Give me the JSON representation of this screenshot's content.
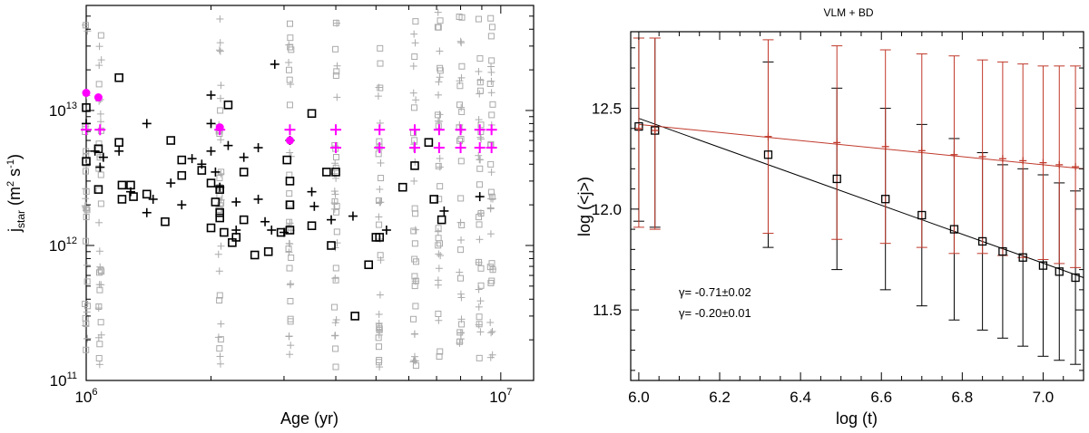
{
  "chart_data": [
    {
      "type": "scatter",
      "xscale": "log",
      "yscale": "log",
      "title": "",
      "xlabel": "Age (yr)",
      "ylabel_main": "j",
      "ylabel_sub": "star",
      "ylabel_units": "(m",
      "ylabel_units_rest": " s",
      "ylabel_units_end": ")",
      "ylabel_sup1": "2",
      "ylabel_sup2": "-1",
      "xlim": [
        1000000.0,
        12000000.0
      ],
      "ylim": [
        100000000000.0,
        60000000000000.0
      ],
      "x_ticks": [
        {
          "value": 1000000.0,
          "base": "10",
          "exp": "6"
        },
        {
          "value": 10000000.0,
          "base": "10",
          "exp": "7"
        }
      ],
      "y_ticks": [
        {
          "value": 100000000000.0,
          "base": "10",
          "exp": "11"
        },
        {
          "value": 1000000000000.0,
          "base": "10",
          "exp": "12"
        },
        {
          "value": 10000000000000.0,
          "base": "10",
          "exp": "13"
        }
      ],
      "grey_columns_age": [
        1000000.0,
        1080000.0,
        2100000.0,
        3100000.0,
        4000000.0,
        5100000.0,
        6200000.0,
        7100000.0,
        8000000.0,
        8900000.0,
        9500000.0
      ],
      "black_squares": [
        [
          1000000.0,
          10500000000000.0
        ],
        [
          1000000.0,
          4200000000000.0
        ],
        [
          1070000.0,
          5200000000000.0
        ],
        [
          1070000.0,
          2600000000000.0
        ],
        [
          1200000.0,
          17500000000000.0
        ],
        [
          1200000.0,
          5800000000000.0
        ],
        [
          1220000.0,
          2800000000000.0
        ],
        [
          1280000.0,
          2800000000000.0
        ],
        [
          1220000.0,
          2200000000000.0
        ],
        [
          1300000.0,
          2300000000000.0
        ],
        [
          1400000.0,
          2400000000000.0
        ],
        [
          1600000.0,
          6000000000000.0
        ],
        [
          1550000.0,
          1500000000000.0
        ],
        [
          1700000.0,
          4300000000000.0
        ],
        [
          1700000.0,
          3300000000000.0
        ],
        [
          1900000.0,
          3600000000000.0
        ],
        [
          2000000.0,
          1350000000000.0
        ],
        [
          2000000.0,
          2900000000000.0
        ],
        [
          2050000.0,
          2100000000000.0
        ],
        [
          2100000.0,
          1600000000000.0
        ],
        [
          2100000.0,
          1750000000000.0
        ],
        [
          2100000.0,
          2600000000000.0
        ],
        [
          2150000.0,
          1250000000000.0
        ],
        [
          2200000.0,
          11000000000000.0
        ],
        [
          2250000.0,
          1050000000000.0
        ],
        [
          2300000.0,
          1150000000000.0
        ],
        [
          2400000.0,
          3500000000000.0
        ],
        [
          2400000.0,
          1550000000000.0
        ],
        [
          2550000.0,
          850000000000.0
        ],
        [
          2750000.0,
          900000000000.0
        ],
        [
          2950000.0,
          1250000000000.0
        ],
        [
          3050000.0,
          4300000000000.0
        ],
        [
          3100000.0,
          3000000000000.0
        ],
        [
          3100000.0,
          2000000000000.0
        ],
        [
          3100000.0,
          1300000000000.0
        ],
        [
          3500000.0,
          9500000000000.0
        ],
        [
          3500000.0,
          1400000000000.0
        ],
        [
          3800000.0,
          3500000000000.0
        ],
        [
          3900000.0,
          1000000000000.0
        ],
        [
          4000000.0,
          3500000000000.0
        ],
        [
          4450000.0,
          300000000000.0
        ],
        [
          4800000.0,
          720000000000.0
        ],
        [
          5000000.0,
          1150000000000.0
        ],
        [
          5100000.0,
          1150000000000.0
        ],
        [
          5800000.0,
          2700000000000.0
        ],
        [
          6200000.0,
          3900000000000.0
        ],
        [
          6700000.0,
          5800000000000.0
        ],
        [
          6900000.0,
          2200000000000.0
        ],
        [
          7200000.0,
          1550000000000.0
        ]
      ],
      "black_crosses": [
        [
          1000000.0,
          8000000000000.0
        ],
        [
          1050000.0,
          5000000000000.0
        ],
        [
          1080000.0,
          3800000000000.0
        ],
        [
          1100000.0,
          4500000000000.0
        ],
        [
          1200000.0,
          5000000000000.0
        ],
        [
          1280000.0,
          2500000000000.0
        ],
        [
          1400000.0,
          8000000000000.0
        ],
        [
          1400000.0,
          1750000000000.0
        ],
        [
          1450000.0,
          2200000000000.0
        ],
        [
          1600000.0,
          2900000000000.0
        ],
        [
          1700000.0,
          2000000000000.0
        ],
        [
          1800000.0,
          4400000000000.0
        ],
        [
          1900000.0,
          4000000000000.0
        ],
        [
          2000000.0,
          13000000000000.0
        ],
        [
          2000000.0,
          8000000000000.0
        ],
        [
          2000000.0,
          5000000000000.0
        ],
        [
          2050000.0,
          3500000000000.0
        ],
        [
          2100000.0,
          2700000000000.0
        ],
        [
          2200000.0,
          5500000000000.0
        ],
        [
          2300000.0,
          2100000000000.0
        ],
        [
          2300000.0,
          1300000000000.0
        ],
        [
          2400000.0,
          4500000000000.0
        ],
        [
          2600000.0,
          5300000000000.0
        ],
        [
          2600000.0,
          2200000000000.0
        ],
        [
          2700000.0,
          1500000000000.0
        ],
        [
          2800000.0,
          1300000000000.0
        ],
        [
          2850000.0,
          22000000000000.0
        ],
        [
          3000000.0,
          1250000000000.0
        ],
        [
          3100000.0,
          6000000000000.0
        ],
        [
          3500000.0,
          2500000000000.0
        ],
        [
          3550000.0,
          1950000000000.0
        ],
        [
          3900000.0,
          1550000000000.0
        ],
        [
          4400000.0,
          1650000000000.0
        ],
        [
          5300000.0,
          1300000000000.0
        ],
        [
          7300000.0,
          1800000000000.0
        ],
        [
          8900000.0,
          2300000000000.0
        ]
      ],
      "magenta_circles": [
        [
          1000000.0,
          13500000000000.0
        ],
        [
          1070000.0,
          12500000000000.0
        ],
        [
          2100000.0,
          7500000000000.0
        ],
        [
          3100000.0,
          6000000000000.0
        ]
      ],
      "magenta_crosses": [
        [
          1000000.0,
          7200000000000.0
        ],
        [
          1080000.0,
          7200000000000.0
        ],
        [
          2100000.0,
          7200000000000.0
        ],
        [
          3100000.0,
          7200000000000.0
        ],
        [
          4000000.0,
          7200000000000.0
        ],
        [
          5100000.0,
          7200000000000.0
        ],
        [
          6200000.0,
          7200000000000.0
        ],
        [
          7100000.0,
          7200000000000.0
        ],
        [
          8000000.0,
          7200000000000.0
        ],
        [
          8900000.0,
          7200000000000.0
        ],
        [
          9500000.0,
          7200000000000.0
        ],
        [
          4000000.0,
          5300000000000.0
        ],
        [
          5100000.0,
          5300000000000.0
        ],
        [
          6200000.0,
          5300000000000.0
        ],
        [
          7100000.0,
          5300000000000.0
        ],
        [
          8000000.0,
          5300000000000.0
        ],
        [
          8900000.0,
          5300000000000.0
        ],
        [
          9500000.0,
          5300000000000.0
        ]
      ]
    },
    {
      "type": "line",
      "title": "VLM + BD",
      "xlabel": "log (t)",
      "ylabel": "log (<j>)",
      "xlim": [
        5.98,
        7.1
      ],
      "ylim": [
        11.15,
        12.88
      ],
      "x_ticks": [
        "6.0",
        "6.2",
        "6.4",
        "6.6",
        "6.8",
        "7.0"
      ],
      "y_ticks": [
        "11.5",
        "12.0",
        "12.5"
      ],
      "series": [
        {
          "name": "black",
          "color": "#000000",
          "x": [
            6.0,
            6.04,
            6.32,
            6.49,
            6.61,
            6.7,
            6.78,
            6.85,
            6.9,
            6.95,
            7.0,
            7.04,
            7.08
          ],
          "y": [
            12.41,
            12.39,
            12.27,
            12.15,
            12.05,
            11.97,
            11.9,
            11.84,
            11.79,
            11.76,
            11.72,
            11.69,
            11.66
          ],
          "err": [
            0.47,
            0.48,
            0.46,
            0.45,
            0.45,
            0.45,
            0.45,
            0.44,
            0.43,
            0.44,
            0.45,
            0.44,
            0.43
          ],
          "fit": {
            "x": [
              6.0,
              7.1
            ],
            "y": [
              12.45,
              11.66
            ]
          }
        },
        {
          "name": "red",
          "color": "#c0392b",
          "x": [
            6.0,
            6.04,
            6.32,
            6.49,
            6.61,
            6.7,
            6.78,
            6.85,
            6.9,
            6.95,
            7.0,
            7.04,
            7.08
          ],
          "y": [
            12.4,
            12.39,
            12.36,
            12.33,
            12.31,
            12.29,
            12.27,
            12.26,
            12.25,
            12.24,
            12.23,
            12.22,
            12.21
          ],
          "err": [
            0.49,
            0.49,
            0.48,
            0.48,
            0.48,
            0.48,
            0.49,
            0.48,
            0.48,
            0.48,
            0.48,
            0.49,
            0.5
          ],
          "fit": {
            "x": [
              6.0,
              7.1
            ],
            "y": [
              12.42,
              12.2
            ]
          }
        }
      ],
      "annotations": [
        {
          "text": "γ= -0.71±0.02",
          "color": "#000000"
        },
        {
          "text": "γ= -0.20±0.01",
          "color": "#c0392b"
        }
      ]
    }
  ]
}
